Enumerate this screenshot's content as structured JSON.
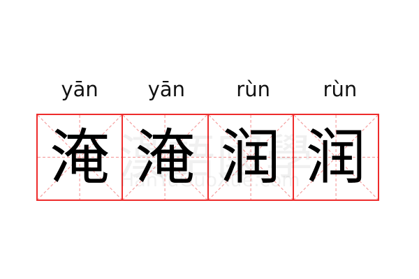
{
  "word": [
    {
      "pinyin": "yān",
      "char": "淹"
    },
    {
      "pinyin": "yān",
      "char": "淹"
    },
    {
      "pinyin": "rùn",
      "char": "润"
    },
    {
      "pinyin": "rùn",
      "char": "润"
    }
  ],
  "watermark": {
    "chinese": "漢語國學",
    "latin": "HanYuGuoXue.com"
  },
  "colors": {
    "grid_border": "#ee2b2b",
    "guide_lines": "#f5a0a0",
    "text": "#000000"
  }
}
